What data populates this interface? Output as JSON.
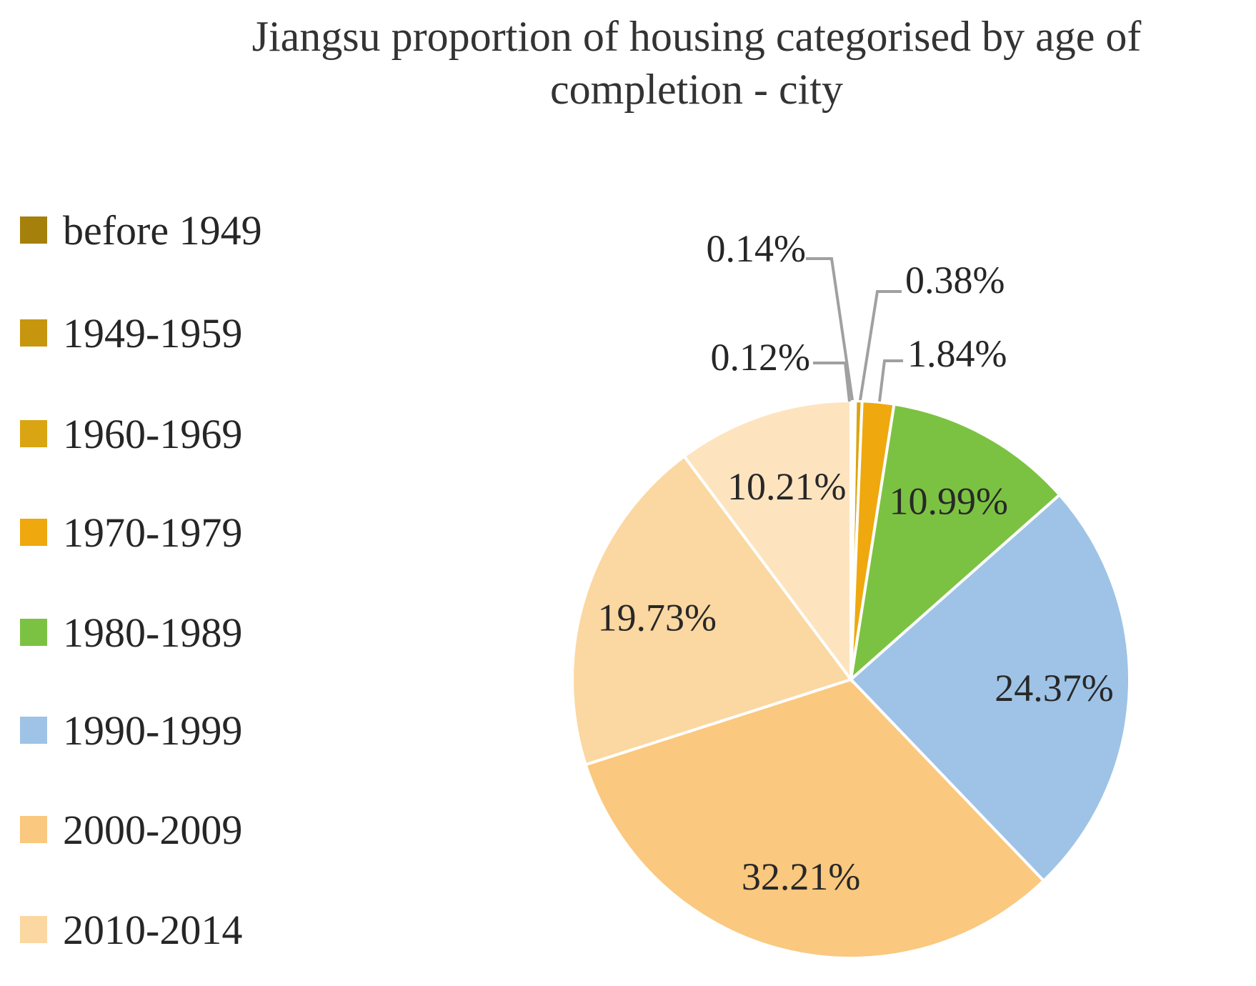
{
  "title": {
    "line1": "Jiangsu proportion of housing categorised by age of",
    "line2": "completion - city",
    "full": "Jiangsu proportion of housing categorised by age of completion - city"
  },
  "colors": {
    "background": "#ffffff",
    "title_text": "#333333",
    "label_text": "#282828",
    "leader_line": "#a0a0a0",
    "slice_border": "#ffffff"
  },
  "chart_data": {
    "type": "pie",
    "title": "Jiangsu proportion of housing categorised by age of completion - city",
    "unit": "%",
    "start_angle_deg": 0,
    "direction": "clockwise",
    "legend_position": "left",
    "slices": [
      {
        "category": "before 1949",
        "value": 0.12,
        "label": "0.12%",
        "color": "#A5810C",
        "label_placement": "outside"
      },
      {
        "category": "1949-1959",
        "value": 0.14,
        "label": "0.14%",
        "color": "#C6960E",
        "label_placement": "outside"
      },
      {
        "category": "1960-1969",
        "value": 0.38,
        "label": "0.38%",
        "color": "#DAA512",
        "label_placement": "outside"
      },
      {
        "category": "1970-1979",
        "value": 1.84,
        "label": "1.84%",
        "color": "#EFA80E",
        "label_placement": "outside"
      },
      {
        "category": "1980-1989",
        "value": 10.99,
        "label": "10.99%",
        "color": "#7CC242",
        "label_placement": "inside"
      },
      {
        "category": "1990-1999",
        "value": 24.37,
        "label": "24.37%",
        "color": "#9EC3E6",
        "label_placement": "inside"
      },
      {
        "category": "2000-2009",
        "value": 32.21,
        "label": "32.21%",
        "color": "#FAC87E",
        "label_placement": "inside"
      },
      {
        "category": "2010-2014",
        "value": 19.73,
        "label": "19.73%",
        "color": "#FBD7A1",
        "label_placement": "inside"
      },
      {
        "category": "",
        "value": 10.21,
        "label": "10.21%",
        "color": "#FDE4BF",
        "label_placement": "inside"
      }
    ],
    "legend": {
      "items": [
        {
          "label": "before 1949",
          "color": "#A5810C"
        },
        {
          "label": "1949-1959",
          "color": "#C6960E"
        },
        {
          "label": "1960-1969",
          "color": "#DAA512"
        },
        {
          "label": "1970-1979",
          "color": "#EFA80E"
        },
        {
          "label": "1980-1989",
          "color": "#7CC242"
        },
        {
          "label": "1990-1999",
          "color": "#9EC3E6"
        },
        {
          "label": "2000-2009",
          "color": "#FAC87E"
        },
        {
          "label": "2010-2014",
          "color": "#FBD7A1"
        }
      ]
    }
  }
}
